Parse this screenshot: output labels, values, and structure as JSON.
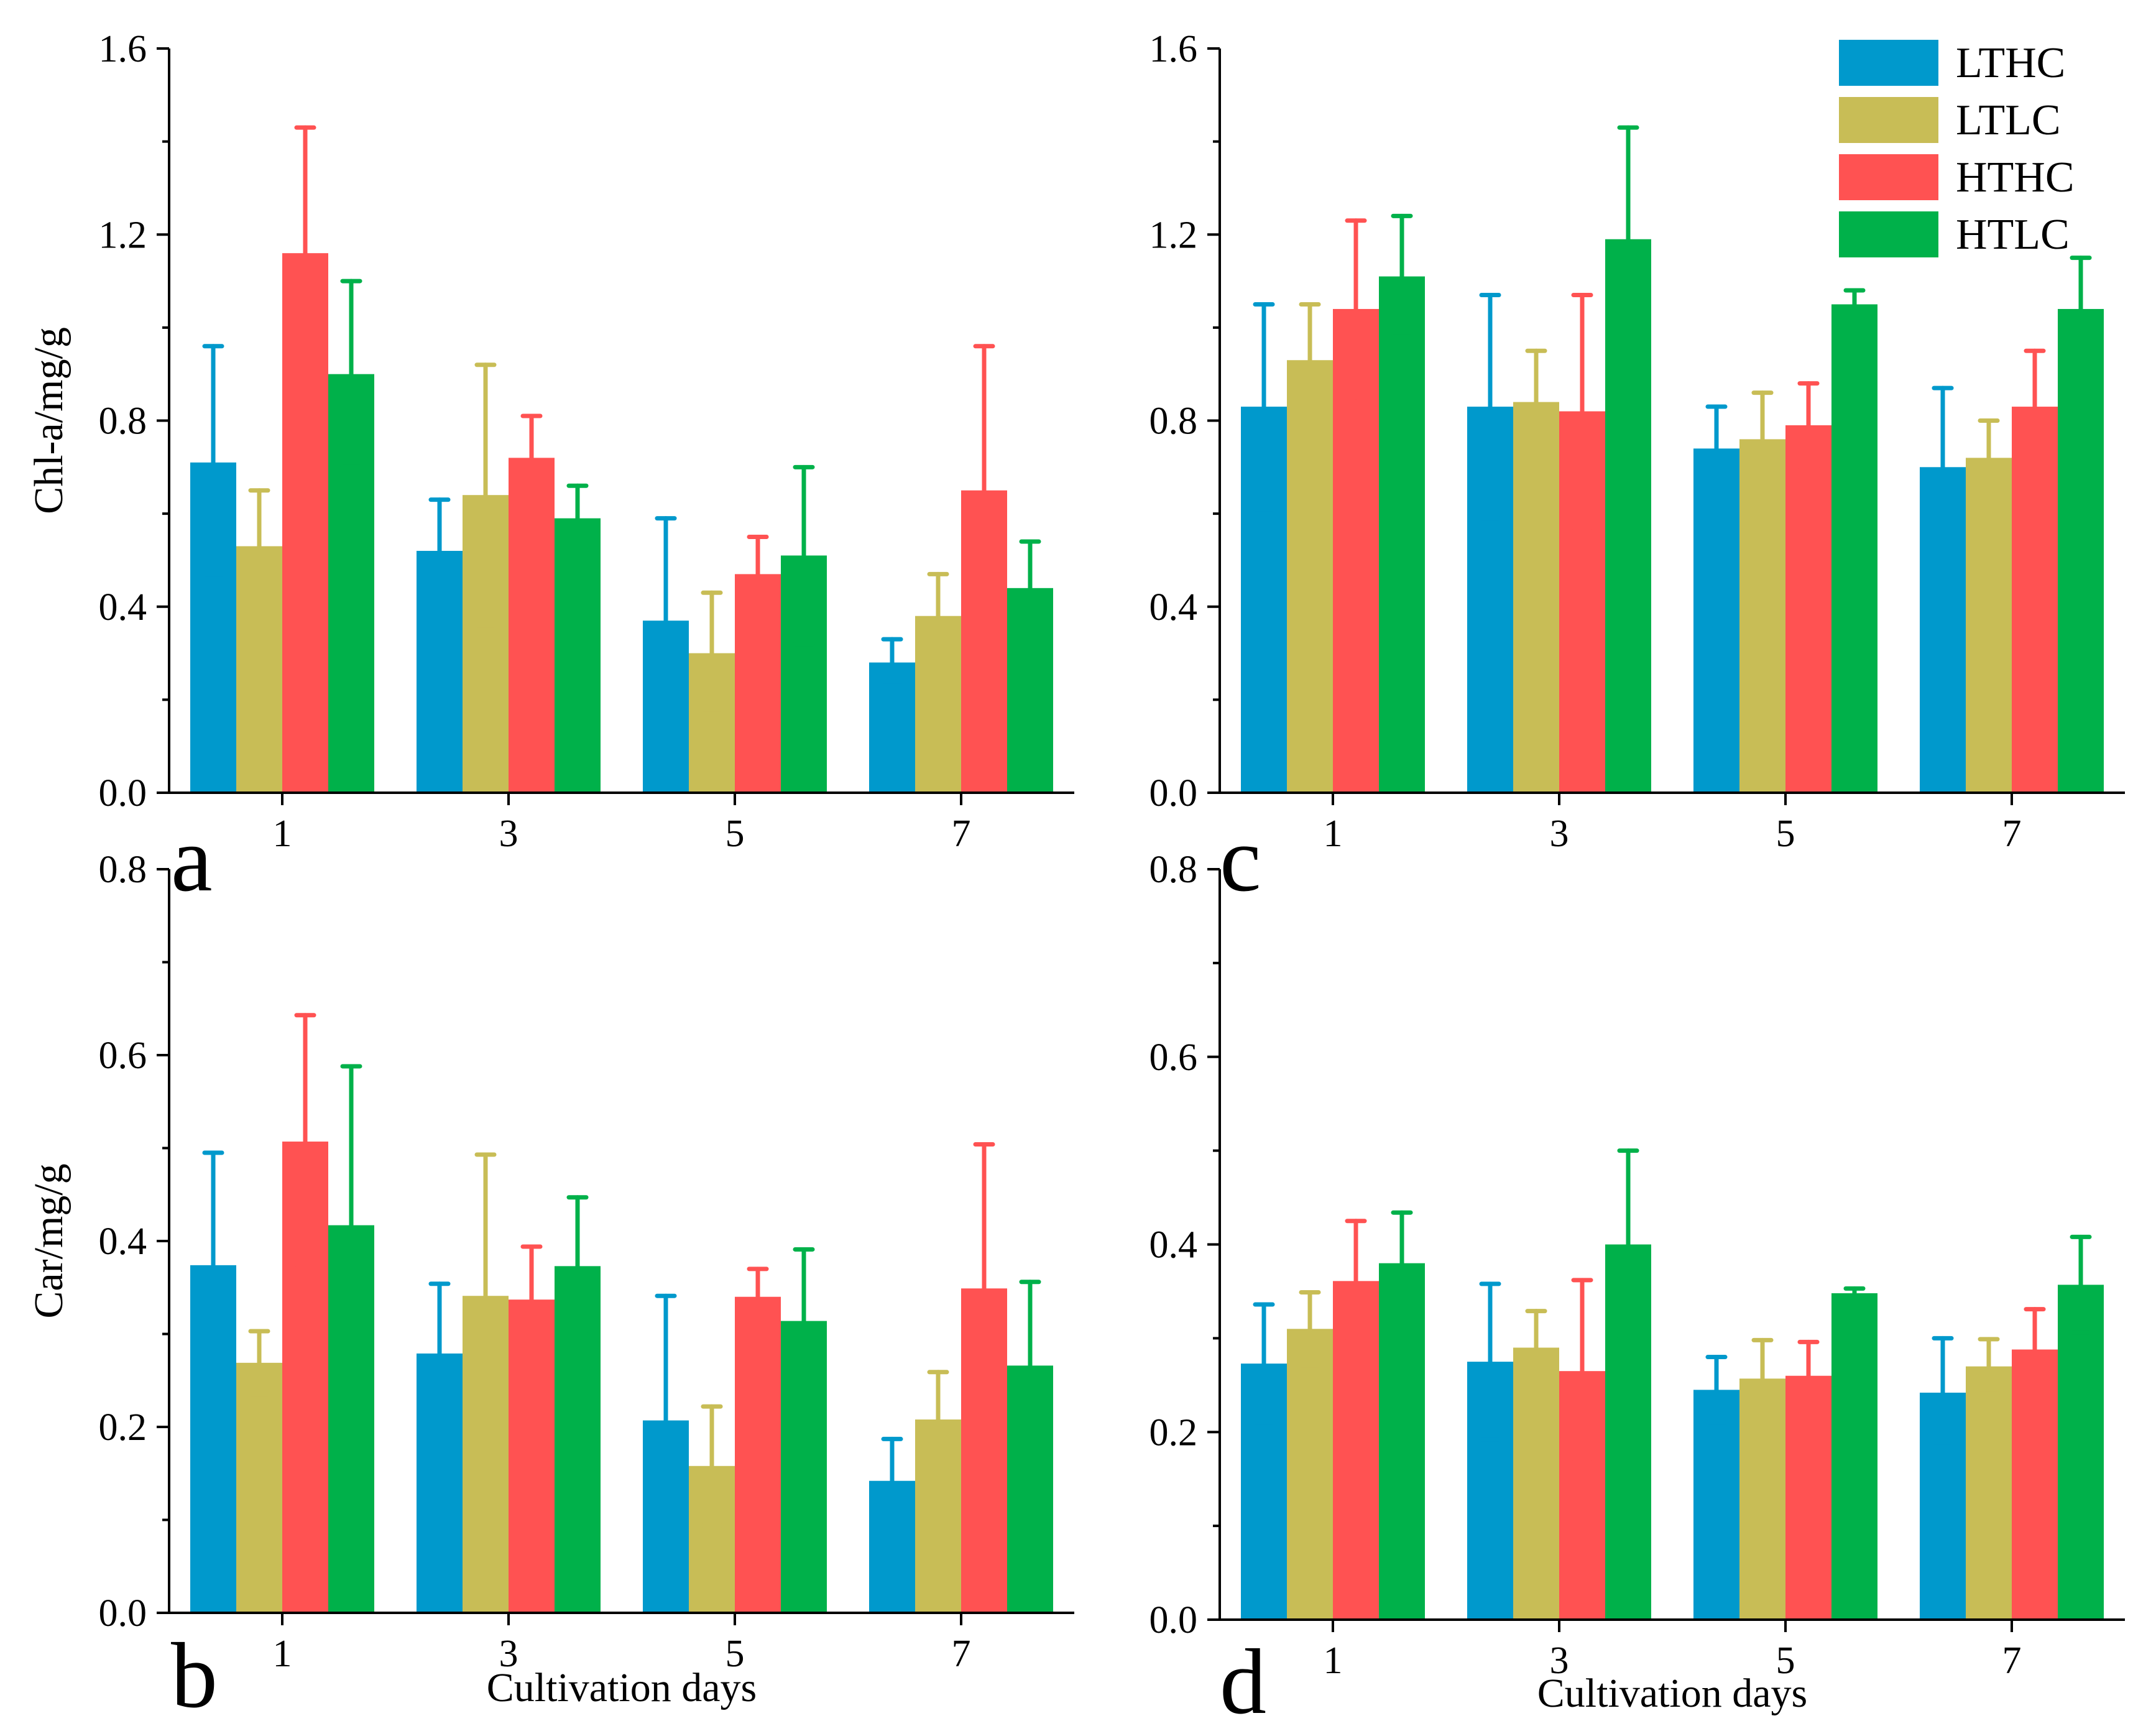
{
  "colors": {
    "LTHC": "#0099cc",
    "LTLC": "#c8bd56",
    "HTHC": "#ff5252",
    "HTLC": "#00b14a"
  },
  "legend": [
    "LTHC",
    "LTLC",
    "HTHC",
    "HTLC"
  ],
  "chart_data": [
    {
      "id": "a",
      "type": "bar",
      "letter": "a",
      "ylabel": "Chl-a/mg/g",
      "xlabel": "",
      "ylim": [
        0,
        1.6
      ],
      "yticks": [
        "0.0",
        "0.4",
        "0.8",
        "1.2",
        "1.6"
      ],
      "categories": [
        "1",
        "3",
        "5",
        "7"
      ],
      "series": [
        {
          "name": "LTHC",
          "values": [
            0.71,
            0.52,
            0.37,
            0.28
          ],
          "errors": [
            0.25,
            0.11,
            0.22,
            0.05
          ]
        },
        {
          "name": "LTLC",
          "values": [
            0.53,
            0.64,
            0.3,
            0.38
          ],
          "errors": [
            0.12,
            0.28,
            0.13,
            0.09
          ]
        },
        {
          "name": "HTHC",
          "values": [
            1.16,
            0.72,
            0.47,
            0.65
          ],
          "errors": [
            0.27,
            0.09,
            0.08,
            0.31
          ]
        },
        {
          "name": "HTLC",
          "values": [
            0.9,
            0.59,
            0.51,
            0.44
          ],
          "errors": [
            0.2,
            0.07,
            0.19,
            0.1
          ]
        }
      ]
    },
    {
      "id": "b",
      "type": "bar",
      "letter": "b",
      "ylabel": "Car/mg/g",
      "xlabel": "Cultivation days",
      "ylim": [
        0,
        0.8
      ],
      "yticks": [
        "0.0",
        "0.2",
        "0.4",
        "0.6",
        "0.8"
      ],
      "categories": [
        "1",
        "3",
        "5",
        "7"
      ],
      "series": [
        {
          "name": "LTHC",
          "values": [
            0.374,
            0.279,
            0.207,
            0.142
          ],
          "errors": [
            0.121,
            0.075,
            0.134,
            0.045
          ]
        },
        {
          "name": "LTLC",
          "values": [
            0.269,
            0.341,
            0.158,
            0.208
          ],
          "errors": [
            0.034,
            0.152,
            0.064,
            0.051
          ]
        },
        {
          "name": "HTHC",
          "values": [
            0.507,
            0.337,
            0.34,
            0.349
          ],
          "errors": [
            0.136,
            0.057,
            0.03,
            0.155
          ]
        },
        {
          "name": "HTLC",
          "values": [
            0.417,
            0.373,
            0.314,
            0.266
          ],
          "errors": [
            0.171,
            0.074,
            0.077,
            0.09
          ]
        }
      ]
    },
    {
      "id": "c",
      "type": "bar",
      "letter": "c",
      "ylabel": "",
      "xlabel": "",
      "ylim": [
        0,
        1.6
      ],
      "yticks": [
        "0.0",
        "0.4",
        "0.8",
        "1.2",
        "1.6"
      ],
      "categories": [
        "1",
        "3",
        "5",
        "7"
      ],
      "series": [
        {
          "name": "LTHC",
          "values": [
            0.83,
            0.83,
            0.74,
            0.7
          ],
          "errors": [
            0.22,
            0.24,
            0.09,
            0.17
          ]
        },
        {
          "name": "LTLC",
          "values": [
            0.93,
            0.84,
            0.76,
            0.72
          ],
          "errors": [
            0.12,
            0.11,
            0.1,
            0.08
          ]
        },
        {
          "name": "HTHC",
          "values": [
            1.04,
            0.82,
            0.79,
            0.83
          ],
          "errors": [
            0.19,
            0.25,
            0.09,
            0.12
          ]
        },
        {
          "name": "HTLC",
          "values": [
            1.11,
            1.19,
            1.05,
            1.04
          ],
          "errors": [
            0.13,
            0.24,
            0.03,
            0.11
          ]
        }
      ]
    },
    {
      "id": "d",
      "type": "bar",
      "letter": "d",
      "ylabel": "",
      "xlabel": "Cultivation days",
      "ylim": [
        0,
        0.8
      ],
      "yticks": [
        "0.0",
        "0.2",
        "0.4",
        "0.6",
        "0.8"
      ],
      "categories": [
        "1",
        "3",
        "5",
        "7"
      ],
      "series": [
        {
          "name": "LTHC",
          "values": [
            0.273,
            0.275,
            0.245,
            0.242
          ],
          "errors": [
            0.063,
            0.083,
            0.035,
            0.058
          ]
        },
        {
          "name": "LTLC",
          "values": [
            0.31,
            0.29,
            0.257,
            0.27
          ],
          "errors": [
            0.039,
            0.039,
            0.041,
            0.029
          ]
        },
        {
          "name": "HTHC",
          "values": [
            0.361,
            0.265,
            0.26,
            0.288
          ],
          "errors": [
            0.064,
            0.097,
            0.036,
            0.043
          ]
        },
        {
          "name": "HTLC",
          "values": [
            0.38,
            0.4,
            0.348,
            0.357
          ],
          "errors": [
            0.054,
            0.1,
            0.005,
            0.051
          ]
        }
      ]
    }
  ]
}
